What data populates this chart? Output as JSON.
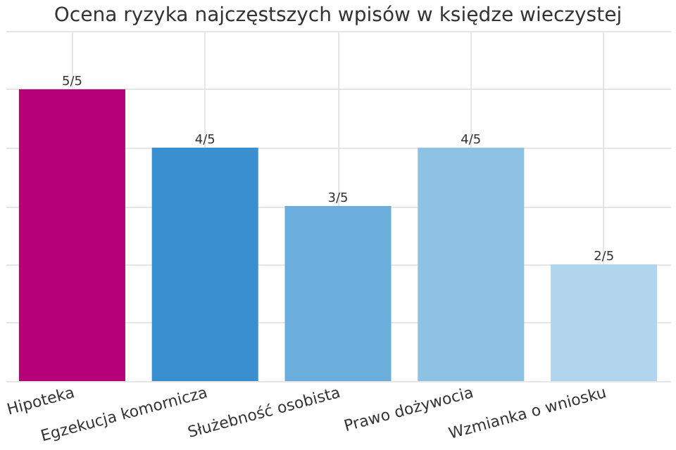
{
  "chart_data": {
    "type": "bar",
    "title": "Ocena ryzyka najczęstszych wpisów w księdze wieczystej",
    "categories": [
      "Hipoteka",
      "Egzekucja komornicza",
      "Służebność osobista",
      "Prawo dożywocia",
      "Wzmianka o wniosku"
    ],
    "values": [
      1,
      0.8,
      0.6,
      0.8,
      0.4
    ],
    "colors": [
      "#b5007a",
      "#3a8fd0",
      "#6aaedc",
      "#8ec2e4",
      "#b1d5ec"
    ],
    "value_labels": [
      "5/5",
      "4/5",
      "3/5",
      "4/5",
      "2/5"
    ],
    "ylim": [
      0,
      1.2
    ],
    "yticks": [
      0,
      0.2,
      0.4,
      0.6,
      0.8,
      1,
      1.2
    ],
    "tick_labels": "x",
    "grid": true
  }
}
